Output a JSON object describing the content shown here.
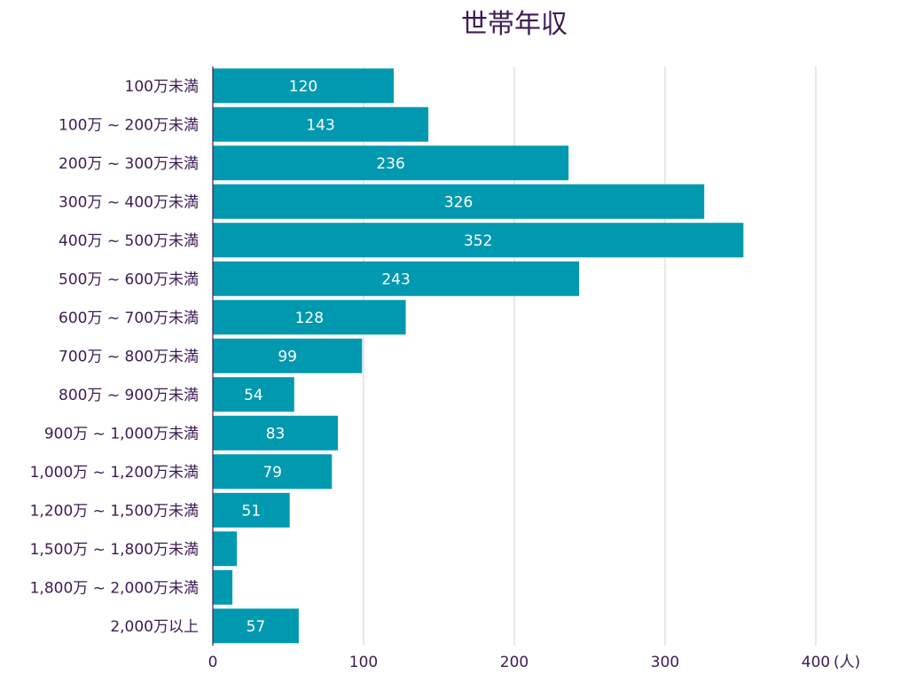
{
  "chart_data": {
    "type": "bar",
    "orientation": "horizontal",
    "title": "世帯年収",
    "xlabel": "",
    "ylabel": "",
    "unit_label": "(人)",
    "xlim": [
      0,
      400
    ],
    "xticks": [
      0,
      100,
      200,
      300,
      400
    ],
    "grid": true,
    "bar_color": "#0099b0",
    "categories": [
      "100万未満",
      "100万 ~ 200万未満",
      "200万 ~ 300万未満",
      "300万 ~ 400万未満",
      "400万 ~ 500万未満",
      "500万 ~ 600万未満",
      "600万 ~ 700万未満",
      "700万 ~ 800万未満",
      "800万 ~ 900万未満",
      "900万 ~ 1,000万未満",
      "1,000万 ~ 1,200万未満",
      "1,200万 ~ 1,500万未満",
      "1,500万 ~ 1,800万未満",
      "1,800万 ~ 2,000万未満",
      "2,000万以上"
    ],
    "values": [
      120,
      143,
      236,
      326,
      352,
      243,
      128,
      99,
      54,
      83,
      79,
      51,
      16,
      13,
      57
    ],
    "data_labels": [
      "120",
      "143",
      "236",
      "326",
      "352",
      "243",
      "128",
      "99",
      "54",
      "83",
      "79",
      "51",
      "",
      "",
      "57"
    ]
  }
}
